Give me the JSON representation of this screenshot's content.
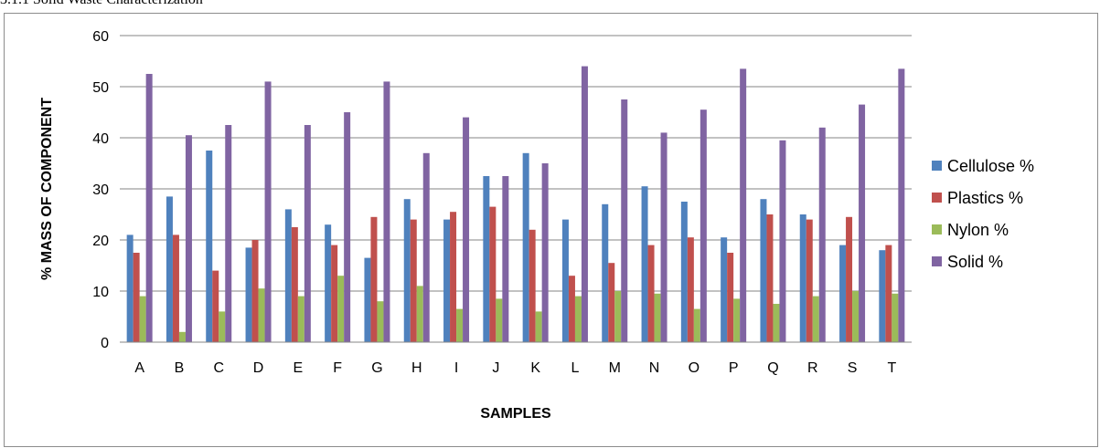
{
  "section_heading": "3.1.1 Solid Waste Characterization",
  "chart_data": {
    "type": "bar",
    "title": "",
    "xlabel": "SAMPLES",
    "ylabel": "% MASS OF COMPONENT",
    "ylim": [
      0,
      60
    ],
    "yticks": [
      0,
      10,
      20,
      30,
      40,
      50,
      60
    ],
    "grid": true,
    "legend_position": "right",
    "categories": [
      "A",
      "B",
      "C",
      "D",
      "E",
      "F",
      "G",
      "H",
      "I",
      "J",
      "K",
      "L",
      "M",
      "N",
      "O",
      "P",
      "Q",
      "R",
      "S",
      "T"
    ],
    "series": [
      {
        "name": "Cellulose %",
        "color": "#4f81bd",
        "values": [
          21,
          28.5,
          37.5,
          18.5,
          26,
          23,
          16.5,
          28,
          24,
          32.5,
          37,
          24,
          27,
          30.5,
          27.5,
          20.5,
          28,
          25,
          19,
          18
        ]
      },
      {
        "name": "Plastics %",
        "color": "#c0504d",
        "values": [
          17.5,
          21,
          14,
          20,
          22.5,
          19,
          24.5,
          24,
          25.5,
          26.5,
          22,
          13,
          15.5,
          19,
          20.5,
          17.5,
          25,
          24,
          24.5,
          19
        ]
      },
      {
        "name": "Nylon %",
        "color": "#9bbb59",
        "values": [
          9,
          2,
          6,
          10.5,
          9,
          13,
          8,
          11,
          6.5,
          8.5,
          6,
          9,
          10,
          9.5,
          6.5,
          8.5,
          7.5,
          9,
          10,
          9.5
        ]
      },
      {
        "name": "Solid %",
        "color": "#8064a2",
        "values": [
          52.5,
          40.5,
          42.5,
          51,
          42.5,
          45,
          51,
          37,
          44,
          32.5,
          35,
          54,
          47.5,
          41,
          45.5,
          53.5,
          39.5,
          42,
          46.5,
          53.5
        ]
      }
    ]
  }
}
